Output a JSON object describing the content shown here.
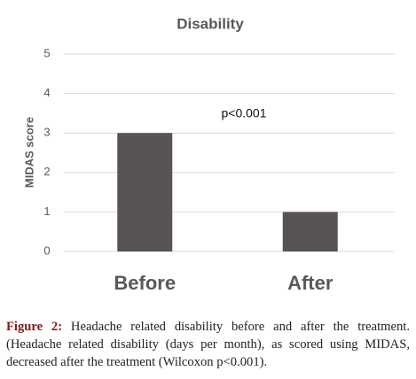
{
  "chart_data": {
    "type": "bar",
    "title": "Disability",
    "y_label": "MIDAS score",
    "categories": [
      "Before",
      "After"
    ],
    "values": [
      3,
      1
    ],
    "color": "#595454",
    "ylim": [
      0,
      5
    ],
    "yticks": [
      0,
      1,
      2,
      3,
      4,
      5
    ],
    "grid": true,
    "annotation": "p<0.001"
  },
  "caption": {
    "label": "Figure 2:",
    "text": "Headache related disability before and after the treatment. (Headache related disability (days per month), as scored using MIDAS, decreased after the treatment (Wilcoxon p<0.001)."
  }
}
